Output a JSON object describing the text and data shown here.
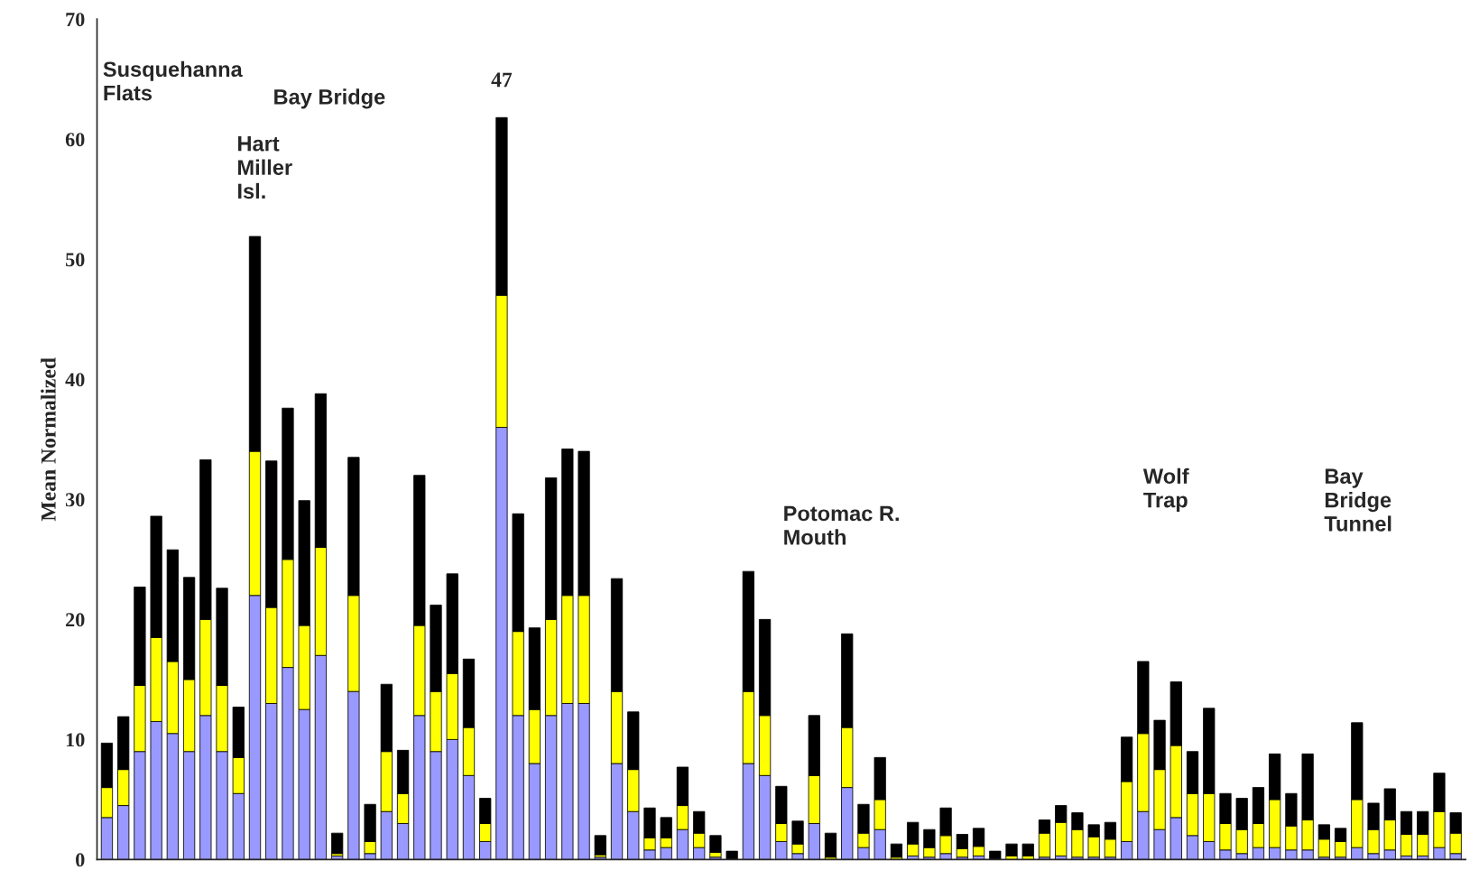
{
  "chart_data": {
    "type": "bar",
    "stacked": true,
    "ylabel": "Mean Normalized",
    "categories": [
      null,
      null,
      null,
      null,
      null,
      null,
      null,
      null,
      null,
      null,
      null,
      null,
      null,
      null,
      null,
      null,
      null,
      null,
      null,
      null,
      null,
      null,
      null,
      null,
      null,
      null,
      null,
      null,
      null,
      null,
      null,
      null,
      null,
      null,
      null,
      null,
      null,
      null,
      null,
      null,
      null,
      null,
      null,
      null,
      null,
      null,
      null,
      null,
      null,
      null,
      null,
      null,
      null,
      null,
      null,
      null,
      null,
      null,
      null,
      null,
      null,
      null,
      null,
      null,
      null,
      null,
      null,
      null,
      null,
      null,
      null,
      null,
      null,
      null,
      null,
      null,
      null,
      null,
      null,
      null,
      null,
      null,
      null
    ],
    "series": [
      {
        "color": "#9999ff",
        "values": [
          3.5,
          4.5,
          9.0,
          11.5,
          10.5,
          9.0,
          12.0,
          9.0,
          5.5,
          22.0,
          13.0,
          16.0,
          12.5,
          17.0,
          0.3,
          14.0,
          0.5,
          4.0,
          3.0,
          12.0,
          9.0,
          10.0,
          7.0,
          1.5,
          36.0,
          12.0,
          8.0,
          12.0,
          13.0,
          13.0,
          0.2,
          8.0,
          4.0,
          0.8,
          1.0,
          2.5,
          1.0,
          0.2,
          0,
          8.0,
          7.0,
          1.5,
          0.5,
          3.0,
          0,
          6.0,
          1.0,
          2.5,
          0,
          0.3,
          0.2,
          0.5,
          0.2,
          0.3,
          0,
          0,
          0,
          0.2,
          0.3,
          0.2,
          0.2,
          0.2,
          1.5,
          4.0,
          2.5,
          3.5,
          2.0,
          1.5,
          0.8,
          0.5,
          1.0,
          1.0,
          0.8,
          0.8,
          0.2,
          0.2,
          1.0,
          0.5,
          0.8,
          0.3,
          0.3,
          1.0,
          0.5
        ]
      },
      {
        "color": "#ffff00",
        "values": [
          2.5,
          3.0,
          5.5,
          7.0,
          6.0,
          6.0,
          8.0,
          5.5,
          3.0,
          12.0,
          8.0,
          9.0,
          7.0,
          9.0,
          0.2,
          8.0,
          1.0,
          5.0,
          2.5,
          7.5,
          5.0,
          5.5,
          4.0,
          1.5,
          11.0,
          7.0,
          4.5,
          8.0,
          9.0,
          9.0,
          0.2,
          6.0,
          3.5,
          1.0,
          0.8,
          2.0,
          1.2,
          0.4,
          0,
          6.0,
          5.0,
          1.5,
          0.8,
          4.0,
          0.2,
          5.0,
          1.2,
          2.5,
          0.2,
          1.0,
          0.8,
          1.5,
          0.7,
          0.8,
          null,
          0.3,
          0.3,
          2.0,
          2.8,
          2.3,
          1.7,
          1.5,
          5.0,
          6.5,
          5.0,
          6.0,
          3.5,
          4.0,
          2.2,
          2.0,
          2.0,
          4.0,
          2.0,
          2.5,
          1.5,
          1.3,
          4.0,
          2.0,
          2.5,
          1.8,
          1.8,
          3.0,
          1.7
        ]
      },
      {
        "color": "#000000",
        "values": [
          3.7,
          4.4,
          8.2,
          10.1,
          9.3,
          8.5,
          13.3,
          8.1,
          4.2,
          17.9,
          12.2,
          12.6,
          10.4,
          12.8,
          1.7,
          11.5,
          3.1,
          5.6,
          3.6,
          12.5,
          7.2,
          8.3,
          5.7,
          2.1,
          14.8,
          9.8,
          6.8,
          11.8,
          12.2,
          12.0,
          1.6,
          9.4,
          4.8,
          2.5,
          1.7,
          3.2,
          1.8,
          1.4,
          0.7,
          10.0,
          8.0,
          3.1,
          1.9,
          5.0,
          2.0,
          7.8,
          2.4,
          3.5,
          1.1,
          1.8,
          1.5,
          2.3,
          1.2,
          1.5,
          0.7,
          1.0,
          1.0,
          1.1,
          1.4,
          1.4,
          1.0,
          1.4,
          3.7,
          6.0,
          4.1,
          5.3,
          3.5,
          7.1,
          2.5,
          2.6,
          3.0,
          3.8,
          2.7,
          5.5,
          1.2,
          1.1,
          6.4,
          2.2,
          2.6,
          1.9,
          1.9,
          3.2,
          1.7
        ]
      }
    ],
    "ylim": [
      0,
      70
    ],
    "yticks": [
      0,
      10,
      20,
      30,
      40,
      50,
      60,
      70
    ],
    "tick_labels": "y",
    "grid": false,
    "annotations": [
      "Susquehanna\nFlats",
      "Hart\nMiller\nIsl.",
      "Bay Bridge",
      "47",
      "Potomac R.\nMouth",
      "Wolf\nTrap",
      "Bay\nBridge\nTunnel"
    ]
  }
}
